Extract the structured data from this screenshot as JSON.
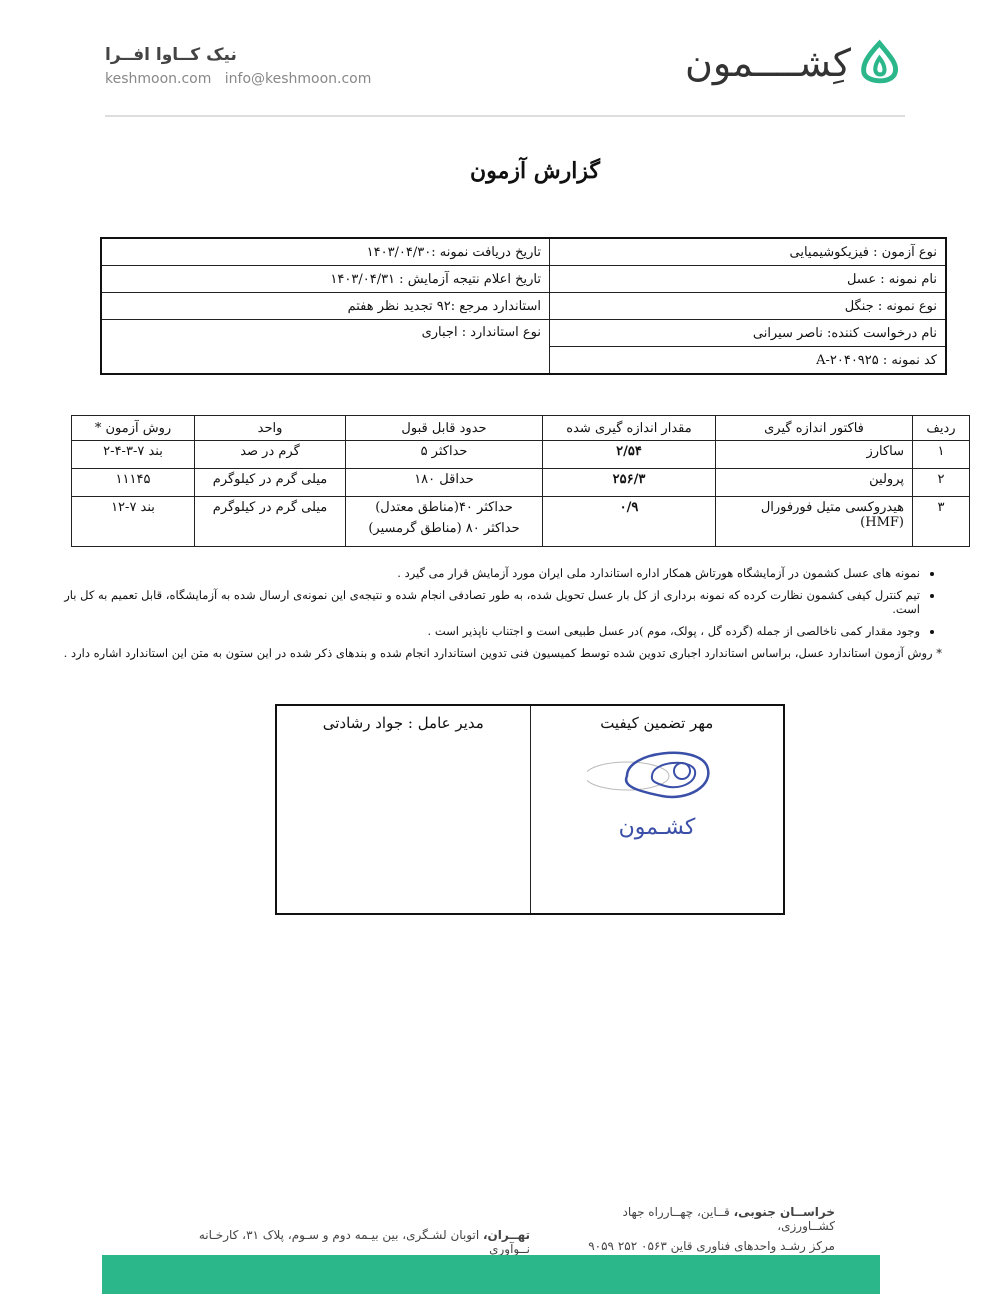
{
  "header": {
    "brand_name": "کِشــــمون",
    "company_name": "نیک کــاوا افــرا",
    "website": "keshmoon.com",
    "email": "info@keshmoon.com",
    "brand_color": "#2bb78a"
  },
  "title": "گزارش آزمون",
  "info": {
    "test_type": "نوع آزمون : فیزیکوشیمیایی",
    "receive_date": "تاریخ دریافت نمونه :۱۴۰۳/۰۴/۳۰",
    "sample_name": "نام نمونه : عسل",
    "result_date": "تاریخ اعلام نتیجه آزمایش : ۱۴۰۳/۰۴/۳۱",
    "sample_kind": "نوع نمونه : جنگل",
    "reference": "استاندارد مرجع :۹۲ تجدید نظر هفتم",
    "requester": "نام درخواست کننده: ناصر سیرانی",
    "standard_type": "نوع استاندارد : اجباری",
    "sample_code": "کد نمونه : ۲۰۴۰۹۲۵-A"
  },
  "results": {
    "headers": [
      "ردیف",
      "فاکتور اندازه گیری",
      "مقدار اندازه گیری شده",
      "حدود قابل قبول",
      "واحد",
      "روش آزمون *"
    ],
    "rows": [
      [
        "۱",
        "ساکارز",
        "۲/۵۴",
        "حداکثر ۵",
        "گرم در صد",
        "بند ۷-۳-۴-۲"
      ],
      [
        "۲",
        "پرولین",
        "۲۵۶/۳",
        "حداقل ۱۸۰",
        "میلی گرم در کیلوگرم",
        "۱۱۱۴۵"
      ],
      [
        "۳",
        "هیدروکسی متیل فورفورال (HMF)",
        "۰/۹",
        "حداکثر ۴۰(مناطق معتدل)",
        "میلی گرم در کیلوگرم",
        "بند ۷-۱۲"
      ]
    ],
    "row3_limit_line2": "حداکثر ۸۰ (مناطق گرمسیر)"
  },
  "notes": [
    "نمونه های عسل کشمون در آزمایشگاه هورتاش همکار اداره استاندارد ملی ایران مورد آزمایش قرار می گیرد .",
    "تیم کنترل کیفی کشمون نظارت کرده که نمونه برداری از کل بار عسل تحویل شده، به طور تصادفی انجام شده و نتیجه‌ی این نمونه‌ی ارسال شده به آزمایشگاه، قابل تعمیم به کل بار است.",
    "وجود مقدار کمی ناخالصی از جمله (گرده گل ، پولک، موم )در عسل طبیعی است و اجتناب ناپذیر است ."
  ],
  "footnote": "* روش آزمون استاندارد عسل، براساس استاندارد اجباری تدوین شده توسط کمیسیون فنی تدوین استاندارد انجام شده و بندهای ذکر شده در این ستون به متن این استاندارد اشاره دارد .",
  "signature": {
    "stamp_label": "مهر تضمین کیفیت",
    "manager": "مدیر عامل : جواد رشادتی",
    "stamp_text": "کشـــمون",
    "stamp_color": "#3a4fa8"
  },
  "footer": {
    "khorasan_bold": "خراســان جنوبی،",
    "khorasan": " قــاین، چهــارراه جهاد کشــاورزی،",
    "khorasan_line2": "مرکز رشـد واحدهای فناوری قاین   ۰۵۶۳ ۲۵۲ ۹۰۵۹",
    "tehran_bold": "تهــران،",
    "tehran": " اتوبان لشـگری، بین بیـمه دوم و سـوم، پلاک ۳۱، کارخـانه نــوآوری"
  }
}
